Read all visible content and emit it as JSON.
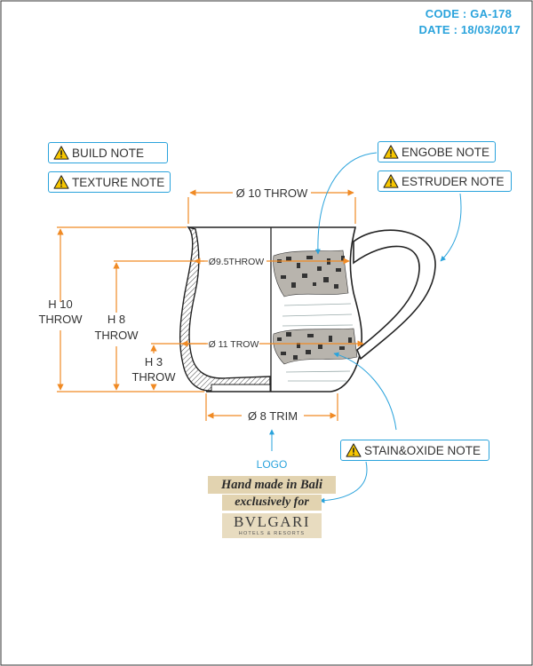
{
  "header": {
    "code": "CODE : GA-178",
    "date": "DATE : 18/03/2017"
  },
  "notes": {
    "build": "BUILD NOTE",
    "texture": "TEXTURE NOTE",
    "engobe": "ENGOBE NOTE",
    "estruder": "ESTRUDER NOTE",
    "stain": "STAIN&OXIDE NOTE"
  },
  "dimensions": {
    "top_diameter": "Ø 10 THROW",
    "mid_diameter": "Ø9.5THROW",
    "belly_diameter": "Ø 11 TROW",
    "foot_diameter": "Ø 8 TRIM",
    "h10_line1": "H 10",
    "h10_line2": "THROW",
    "h8_line1": "H 8",
    "h8_line2": "THROW",
    "h3_line1": "H 3",
    "h3_line2": "THROW"
  },
  "logo": {
    "label": "LOGO",
    "line1": "Hand made in Bali",
    "line2": "exclusively for",
    "brand": "BVLGARI",
    "sub": "HOTELS & RESORTS"
  },
  "colors": {
    "accent": "#2aa3dc",
    "dimension": "#f08a24",
    "outline": "#222222"
  },
  "icons": [
    "warning-icon",
    "arrow-up-icon"
  ]
}
